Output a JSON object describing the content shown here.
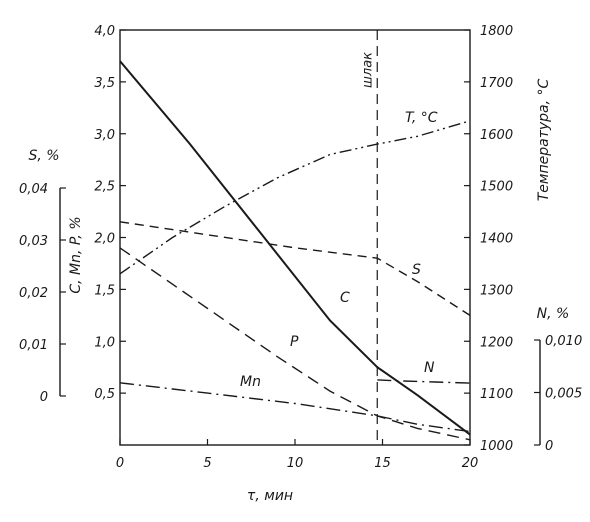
{
  "chart_data": {
    "type": "line",
    "title": "",
    "xlabel": "τ, мин",
    "x_ticks": [
      "0",
      "5",
      "10",
      "15",
      "20"
    ],
    "xlim": [
      0,
      20
    ],
    "axes": {
      "c_mn_p": {
        "label": "C, Mn, P, %",
        "range": [
          0,
          4.0
        ],
        "ticks": [
          "0,5",
          "1,0",
          "1,5",
          "2,0",
          "2,5",
          "3,0",
          "3,5",
          "4,0"
        ]
      },
      "s": {
        "label": "S, %",
        "range": [
          0,
          0.04
        ],
        "ticks": [
          "0",
          "0,01",
          "0,02",
          "0,03",
          "0,04"
        ]
      },
      "temperature": {
        "label": "Температура, °C",
        "range": [
          1000,
          1800
        ],
        "ticks": [
          "1000",
          "1100",
          "1200",
          "1300",
          "1400",
          "1500",
          "1600",
          "1700",
          "1800"
        ]
      },
      "n": {
        "label": "N, %",
        "range": [
          0,
          0.01
        ],
        "ticks": [
          "0",
          "0,005",
          "0,010"
        ]
      }
    },
    "annotations": [
      {
        "label": "шлак",
        "x": 14.7
      }
    ],
    "series": [
      {
        "name": "C",
        "axis": "c_mn_p",
        "style": "solid",
        "x": [
          0,
          4,
          8,
          12,
          14.7,
          17,
          20
        ],
        "y": [
          3.7,
          2.9,
          2.05,
          1.2,
          0.75,
          0.48,
          0.1
        ]
      },
      {
        "name": "T, °C",
        "axis": "temperature",
        "style": "dash-dot-dot",
        "x": [
          0,
          3,
          6,
          9,
          12,
          14.7,
          17,
          20
        ],
        "y": [
          1330,
          1400,
          1460,
          1515,
          1560,
          1580,
          1595,
          1625
        ]
      },
      {
        "name": "S",
        "axis": "s",
        "style": "dashed",
        "x": [
          0,
          5,
          10,
          14.7,
          17,
          20
        ],
        "y": [
          0.0335,
          0.031,
          0.0285,
          0.0265,
          0.022,
          0.0155
        ]
      },
      {
        "name": "P",
        "axis": "c_mn_p",
        "style": "long-dash",
        "x": [
          0,
          3,
          6,
          9,
          12,
          14.7,
          17,
          20
        ],
        "y": [
          1.9,
          1.55,
          1.2,
          0.85,
          0.52,
          0.28,
          0.16,
          0.05
        ]
      },
      {
        "name": "Mn",
        "axis": "c_mn_p",
        "style": "dash-dot",
        "x": [
          0,
          5,
          10,
          14.7,
          17,
          20
        ],
        "y": [
          0.6,
          0.5,
          0.4,
          0.28,
          0.2,
          0.13
        ]
      },
      {
        "name": "N",
        "axis": "n",
        "style": "dash-dot",
        "x": [
          14.7,
          16,
          18,
          20
        ],
        "y": [
          0.0062,
          0.0061,
          0.006,
          0.0059
        ]
      }
    ],
    "series_labels": [
      "C",
      "T, °C",
      "S",
      "P",
      "Mn",
      "N"
    ],
    "grid": false
  }
}
